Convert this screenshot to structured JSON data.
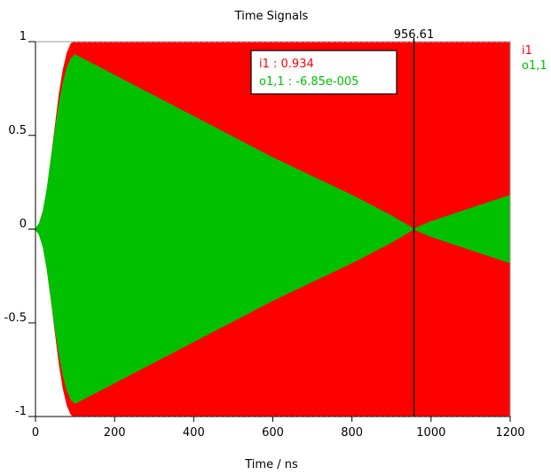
{
  "chart_data": {
    "type": "area",
    "title": "Time Signals",
    "xlabel": "Time / ns",
    "ylabel": "",
    "xlim": [
      0,
      1200
    ],
    "ylim": [
      -1,
      1
    ],
    "x_ticks": [
      0,
      200,
      400,
      600,
      800,
      1000,
      1200
    ],
    "y_ticks": [
      1,
      0.5,
      0,
      -0.5,
      -1
    ],
    "x_tick_labels": [
      "0",
      "200",
      "400",
      "600",
      "800",
      "1000",
      "1200"
    ],
    "y_tick_labels": [
      "1",
      "0.5",
      "0",
      "-0.5",
      "-1"
    ],
    "grid": false,
    "legend_position": "right",
    "series": [
      {
        "name": "i1",
        "color": "#ff0000",
        "envelope": {
          "x": [
            0,
            10,
            20,
            30,
            40,
            50,
            60,
            70,
            80,
            90,
            100,
            110,
            1200
          ],
          "y": [
            0,
            0.03,
            0.1,
            0.22,
            0.38,
            0.55,
            0.72,
            0.85,
            0.94,
            0.99,
            1.0,
            1.0,
            1.0
          ]
        }
      },
      {
        "name": "o1,1",
        "color": "#00c000",
        "envelope": {
          "x": [
            0,
            10,
            20,
            30,
            40,
            50,
            60,
            70,
            80,
            90,
            100,
            200,
            300,
            400,
            500,
            600,
            700,
            800,
            900,
            956.61,
            1000,
            1100,
            1200
          ],
          "y": [
            0,
            0.03,
            0.1,
            0.22,
            0.38,
            0.53,
            0.67,
            0.78,
            0.86,
            0.91,
            0.93,
            0.82,
            0.71,
            0.6,
            0.49,
            0.38,
            0.28,
            0.18,
            0.07,
            0.0,
            0.04,
            0.11,
            0.18
          ]
        }
      }
    ],
    "cursor": {
      "x": 956.61,
      "label": "956.61",
      "readouts": [
        {
          "text": "i1 : 0.934",
          "color": "#ff0000"
        },
        {
          "text": "o1,1 : -6.85e-005",
          "color": "#00c000"
        }
      ]
    }
  }
}
